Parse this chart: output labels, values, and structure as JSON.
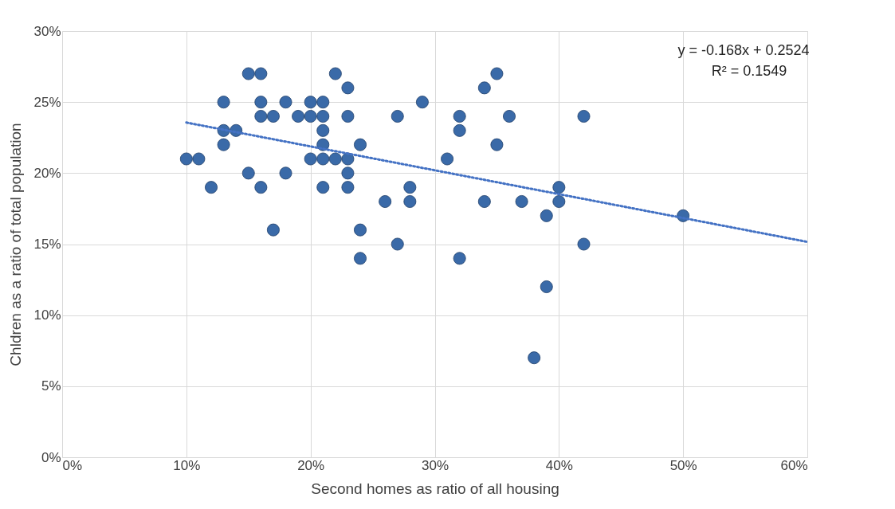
{
  "chart_data": {
    "type": "scatter",
    "xlabel": "Second homes as ratio of all housing",
    "ylabel": "Chldren as a ratio of total population",
    "xlim": [
      0,
      0.6
    ],
    "ylim": [
      0,
      0.3
    ],
    "xticks": [
      {
        "value": 0,
        "label": "0%"
      },
      {
        "value": 0.1,
        "label": "10%"
      },
      {
        "value": 0.2,
        "label": "20%"
      },
      {
        "value": 0.3,
        "label": "30%"
      },
      {
        "value": 0.4,
        "label": "40%"
      },
      {
        "value": 0.5,
        "label": "50%"
      },
      {
        "value": 0.6,
        "label": "60%"
      }
    ],
    "yticks": [
      {
        "value": 0,
        "label": "0%"
      },
      {
        "value": 0.05,
        "label": "5%"
      },
      {
        "value": 0.1,
        "label": "10%"
      },
      {
        "value": 0.15,
        "label": "15%"
      },
      {
        "value": 0.2,
        "label": "20%"
      },
      {
        "value": 0.25,
        "label": "25%"
      },
      {
        "value": 0.3,
        "label": "30%"
      }
    ],
    "grid": true,
    "marker": "circle",
    "series": [
      {
        "color": "#3a6aa8",
        "x": [
          0.1,
          0.11,
          0.12,
          0.13,
          0.13,
          0.13,
          0.14,
          0.15,
          0.15,
          0.16,
          0.16,
          0.16,
          0.16,
          0.17,
          0.17,
          0.18,
          0.18,
          0.19,
          0.2,
          0.2,
          0.2,
          0.21,
          0.21,
          0.21,
          0.21,
          0.21,
          0.21,
          0.22,
          0.22,
          0.23,
          0.23,
          0.23,
          0.23,
          0.23,
          0.24,
          0.24,
          0.24,
          0.26,
          0.27,
          0.27,
          0.28,
          0.28,
          0.29,
          0.31,
          0.32,
          0.32,
          0.32,
          0.34,
          0.34,
          0.35,
          0.35,
          0.36,
          0.37,
          0.38,
          0.39,
          0.39,
          0.4,
          0.4,
          0.42,
          0.42,
          0.5
        ],
        "values": [
          0.21,
          0.21,
          0.19,
          0.25,
          0.23,
          0.22,
          0.23,
          0.27,
          0.2,
          0.27,
          0.25,
          0.24,
          0.19,
          0.24,
          0.16,
          0.25,
          0.2,
          0.24,
          0.25,
          0.24,
          0.21,
          0.25,
          0.24,
          0.23,
          0.22,
          0.21,
          0.19,
          0.27,
          0.21,
          0.26,
          0.24,
          0.21,
          0.2,
          0.19,
          0.22,
          0.16,
          0.14,
          0.18,
          0.24,
          0.15,
          0.19,
          0.18,
          0.25,
          0.21,
          0.24,
          0.23,
          0.14,
          0.26,
          0.18,
          0.27,
          0.22,
          0.24,
          0.18,
          0.07,
          0.17,
          0.12,
          0.19,
          0.18,
          0.24,
          0.15,
          0.17
        ]
      },
      {
        "type": "line",
        "color": "#4472c4",
        "line_style": "dotted",
        "marker": "none",
        "x": [
          0.1,
          0.6
        ],
        "values": [
          0.2356,
          0.1516
        ]
      }
    ],
    "annotations": [
      "y = -0.168x + 0.2524",
      "R² = 0.1549"
    ]
  }
}
